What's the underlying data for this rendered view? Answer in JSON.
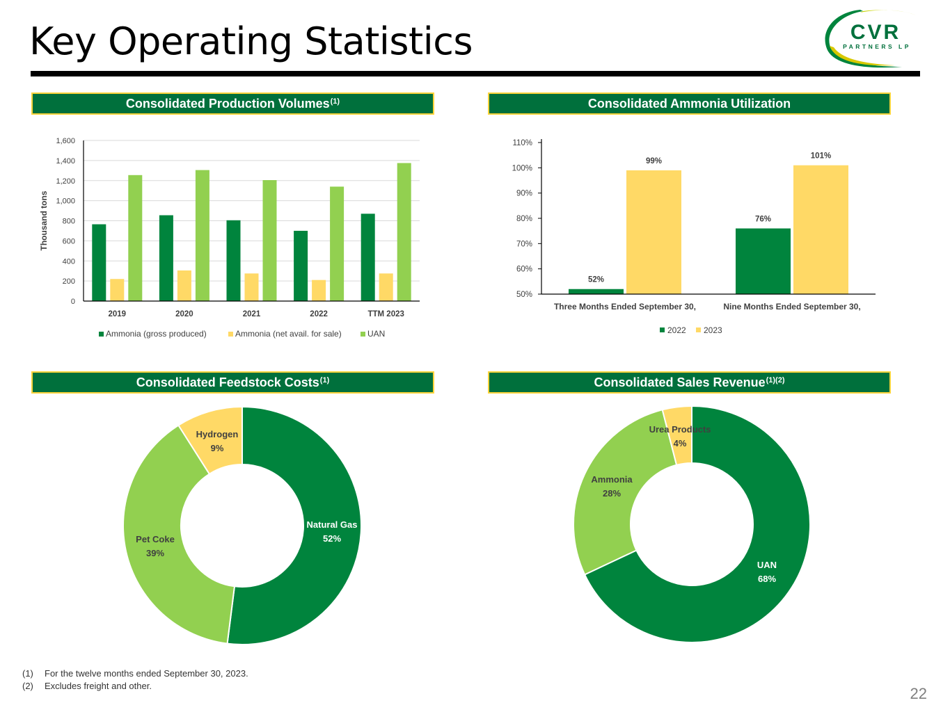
{
  "page": {
    "title": "Key Operating Statistics",
    "page_number": "22"
  },
  "logo": {
    "name": "CVR",
    "tagline": "PARTNERS LP"
  },
  "colors": {
    "dark_green": "#00843d",
    "light_green": "#92d050",
    "yellow": "#ffd966",
    "header_bg": "#00703c",
    "header_border": "#ffd43b"
  },
  "panels": {
    "production": {
      "title": "Consolidated Production Volumes",
      "sup": "(1)"
    },
    "utilization": {
      "title": "Consolidated Ammonia Utilization",
      "sup": ""
    },
    "feedstock": {
      "title": "Consolidated Feedstock Costs",
      "sup": "(1)"
    },
    "revenue": {
      "title": "Consolidated Sales Revenue",
      "sup": "(1)(2)"
    }
  },
  "chart_data": [
    {
      "id": "production",
      "type": "bar",
      "title": "Consolidated Production Volumes(1)",
      "ylabel": "Thousand tons",
      "ylim": [
        0,
        1600
      ],
      "yticks": [
        0,
        200,
        400,
        600,
        800,
        1000,
        1200,
        1400,
        1600
      ],
      "ytick_labels": [
        "0",
        "200",
        "400",
        "600",
        "800",
        "1,000",
        "1,200",
        "1,400",
        "1,600"
      ],
      "grid": true,
      "legend_position": "bottom",
      "categories": [
        "2019",
        "2020",
        "2021",
        "2022",
        "TTM 2023"
      ],
      "series": [
        {
          "name": "Ammonia (gross produced)",
          "color": "#00843d",
          "values": [
            765,
            855,
            805,
            700,
            870
          ]
        },
        {
          "name": "Ammonia (net avail. for sale)",
          "color": "#ffd966",
          "values": [
            220,
            305,
            275,
            210,
            275
          ]
        },
        {
          "name": "UAN",
          "color": "#92d050",
          "values": [
            1255,
            1305,
            1205,
            1140,
            1375
          ]
        }
      ]
    },
    {
      "id": "utilization",
      "type": "bar",
      "title": "Consolidated Ammonia Utilization",
      "ylim": [
        50,
        110
      ],
      "yticks": [
        50,
        60,
        70,
        80,
        90,
        100,
        110
      ],
      "ytick_labels": [
        "50%",
        "60%",
        "70%",
        "80%",
        "90%",
        "100%",
        "110%"
      ],
      "grid": false,
      "legend_position": "bottom",
      "categories": [
        "Three Months Ended September 30,",
        "Nine Months Ended September 30,"
      ],
      "series": [
        {
          "name": "2022",
          "color": "#00843d",
          "values": [
            52,
            76
          ],
          "labels": [
            "52%",
            "76%"
          ]
        },
        {
          "name": "2023",
          "color": "#ffd966",
          "values": [
            99,
            101
          ],
          "labels": [
            "99%",
            "101%"
          ]
        }
      ]
    },
    {
      "id": "feedstock",
      "type": "pie",
      "title": "Consolidated Feedstock Costs(1)",
      "slices": [
        {
          "label": "Natural Gas",
          "value": 52,
          "pct_label": "52%",
          "color": "#00843d",
          "text_color": "#ffffff"
        },
        {
          "label": "Pet Coke",
          "value": 39,
          "pct_label": "39%",
          "color": "#92d050",
          "text_color": "#404040"
        },
        {
          "label": "Hydrogen",
          "value": 9,
          "pct_label": "9%",
          "color": "#ffd966",
          "text_color": "#404040"
        }
      ]
    },
    {
      "id": "revenue",
      "type": "pie",
      "title": "Consolidated Sales Revenue(1)(2)",
      "slices": [
        {
          "label": "UAN",
          "value": 68,
          "pct_label": "68%",
          "color": "#00843d",
          "text_color": "#ffffff"
        },
        {
          "label": "Ammonia",
          "value": 28,
          "pct_label": "28%",
          "color": "#92d050",
          "text_color": "#404040"
        },
        {
          "label": "Urea Products",
          "value": 4,
          "pct_label": "4%",
          "color": "#ffd966",
          "text_color": "#404040"
        }
      ]
    }
  ],
  "footnotes": [
    {
      "num": "(1)",
      "text": "For the twelve months ended September 30, 2023."
    },
    {
      "num": "(2)",
      "text": "Excludes freight and other."
    }
  ]
}
